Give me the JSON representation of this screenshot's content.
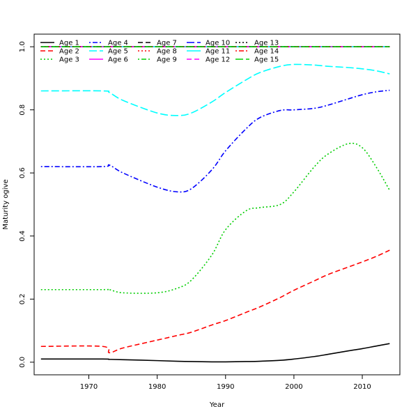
{
  "chart_data": {
    "type": "line",
    "title": "",
    "xlabel": "Year",
    "ylabel": "Maturity ogive",
    "xlim": [
      1962,
      2015.5
    ],
    "ylim": [
      -0.04,
      1.04
    ],
    "xticks": [
      1970,
      1980,
      1990,
      2000,
      2010
    ],
    "yticks": [
      0.0,
      0.2,
      0.4,
      0.6,
      0.8,
      1.0
    ],
    "ytick_labels": [
      "0.0",
      "0.2",
      "0.4",
      "0.6",
      "0.8",
      "1.0"
    ],
    "grid": false,
    "legend_position": "top-left",
    "x": [
      1963,
      1972,
      1973,
      1975,
      1980,
      1983,
      1985,
      1988,
      1990,
      1993,
      1995,
      1998,
      2000,
      2003,
      2005,
      2008,
      2010,
      2012,
      2014
    ],
    "series": [
      {
        "name": "Age 1",
        "color": "#000000",
        "dash": "solid",
        "values": [
          0.01,
          0.01,
          0.009,
          0.008,
          0.005,
          0.003,
          0.002,
          0.001,
          0.001,
          0.002,
          0.003,
          0.006,
          0.01,
          0.018,
          0.025,
          0.036,
          0.043,
          0.051,
          0.059
        ]
      },
      {
        "name": "Age 2",
        "color": "#ff0000",
        "dash": "dashed",
        "values": [
          0.05,
          0.05,
          0.03,
          0.045,
          0.07,
          0.085,
          0.095,
          0.118,
          0.132,
          0.158,
          0.175,
          0.205,
          0.228,
          0.258,
          0.278,
          0.302,
          0.318,
          0.335,
          0.355
        ]
      },
      {
        "name": "Age 3",
        "color": "#00cd00",
        "dash": "dotted",
        "values": [
          0.23,
          0.23,
          0.23,
          0.22,
          0.22,
          0.235,
          0.26,
          0.34,
          0.42,
          0.48,
          0.49,
          0.5,
          0.54,
          0.62,
          0.66,
          0.693,
          0.68,
          0.62,
          0.545
        ]
      },
      {
        "name": "Age 4",
        "color": "#0000ff",
        "dash": "dotdash",
        "values": [
          0.62,
          0.62,
          0.625,
          0.6,
          0.555,
          0.54,
          0.55,
          0.61,
          0.67,
          0.74,
          0.775,
          0.798,
          0.8,
          0.805,
          0.815,
          0.835,
          0.848,
          0.857,
          0.862
        ]
      },
      {
        "name": "Age 5",
        "color": "#00ffff",
        "dash": "longdash",
        "values": [
          0.86,
          0.86,
          0.855,
          0.83,
          0.79,
          0.782,
          0.79,
          0.825,
          0.855,
          0.895,
          0.918,
          0.938,
          0.944,
          0.942,
          0.938,
          0.934,
          0.93,
          0.924,
          0.914
        ]
      },
      {
        "name": "Age 6",
        "color": "#ff00ff",
        "dash": "solid",
        "values": [
          1,
          1,
          1,
          1,
          1,
          1,
          1,
          1,
          1,
          1,
          1,
          1,
          1,
          1,
          1,
          1,
          1,
          1,
          1
        ]
      },
      {
        "name": "Age 7",
        "color": "#000000",
        "dash": "dashed",
        "values": [
          1,
          1,
          1,
          1,
          1,
          1,
          1,
          1,
          1,
          1,
          1,
          1,
          1,
          1,
          1,
          1,
          1,
          1,
          1
        ]
      },
      {
        "name": "Age 8",
        "color": "#ff0000",
        "dash": "dotted",
        "values": [
          1,
          1,
          1,
          1,
          1,
          1,
          1,
          1,
          1,
          1,
          1,
          1,
          1,
          1,
          1,
          1,
          1,
          1,
          1
        ]
      },
      {
        "name": "Age 9",
        "color": "#00cd00",
        "dash": "dotdash",
        "values": [
          1,
          1,
          1,
          1,
          1,
          1,
          1,
          1,
          1,
          1,
          1,
          1,
          1,
          1,
          1,
          1,
          1,
          1,
          1
        ]
      },
      {
        "name": "Age 10",
        "color": "#0000ff",
        "dash": "longdash",
        "values": [
          1,
          1,
          1,
          1,
          1,
          1,
          1,
          1,
          1,
          1,
          1,
          1,
          1,
          1,
          1,
          1,
          1,
          1,
          1
        ]
      },
      {
        "name": "Age 11",
        "color": "#00ffff",
        "dash": "solid",
        "values": [
          1,
          1,
          1,
          1,
          1,
          1,
          1,
          1,
          1,
          1,
          1,
          1,
          1,
          1,
          1,
          1,
          1,
          1,
          1
        ]
      },
      {
        "name": "Age 12",
        "color": "#ff00ff",
        "dash": "dashed",
        "values": [
          1,
          1,
          1,
          1,
          1,
          1,
          1,
          1,
          1,
          1,
          1,
          1,
          1,
          1,
          1,
          1,
          1,
          1,
          1
        ]
      },
      {
        "name": "Age 13",
        "color": "#000000",
        "dash": "dotted",
        "values": [
          1,
          1,
          1,
          1,
          1,
          1,
          1,
          1,
          1,
          1,
          1,
          1,
          1,
          1,
          1,
          1,
          1,
          1,
          1
        ]
      },
      {
        "name": "Age 14",
        "color": "#ff0000",
        "dash": "dotdash",
        "values": [
          1,
          1,
          1,
          1,
          1,
          1,
          1,
          1,
          1,
          1,
          1,
          1,
          1,
          1,
          1,
          1,
          1,
          1,
          1
        ]
      },
      {
        "name": "Age 15",
        "color": "#00cd00",
        "dash": "longdash",
        "values": [
          1,
          1,
          1,
          1,
          1,
          1,
          1,
          1,
          1,
          1,
          1,
          1,
          1,
          1,
          1,
          1,
          1,
          1,
          1
        ]
      }
    ]
  }
}
